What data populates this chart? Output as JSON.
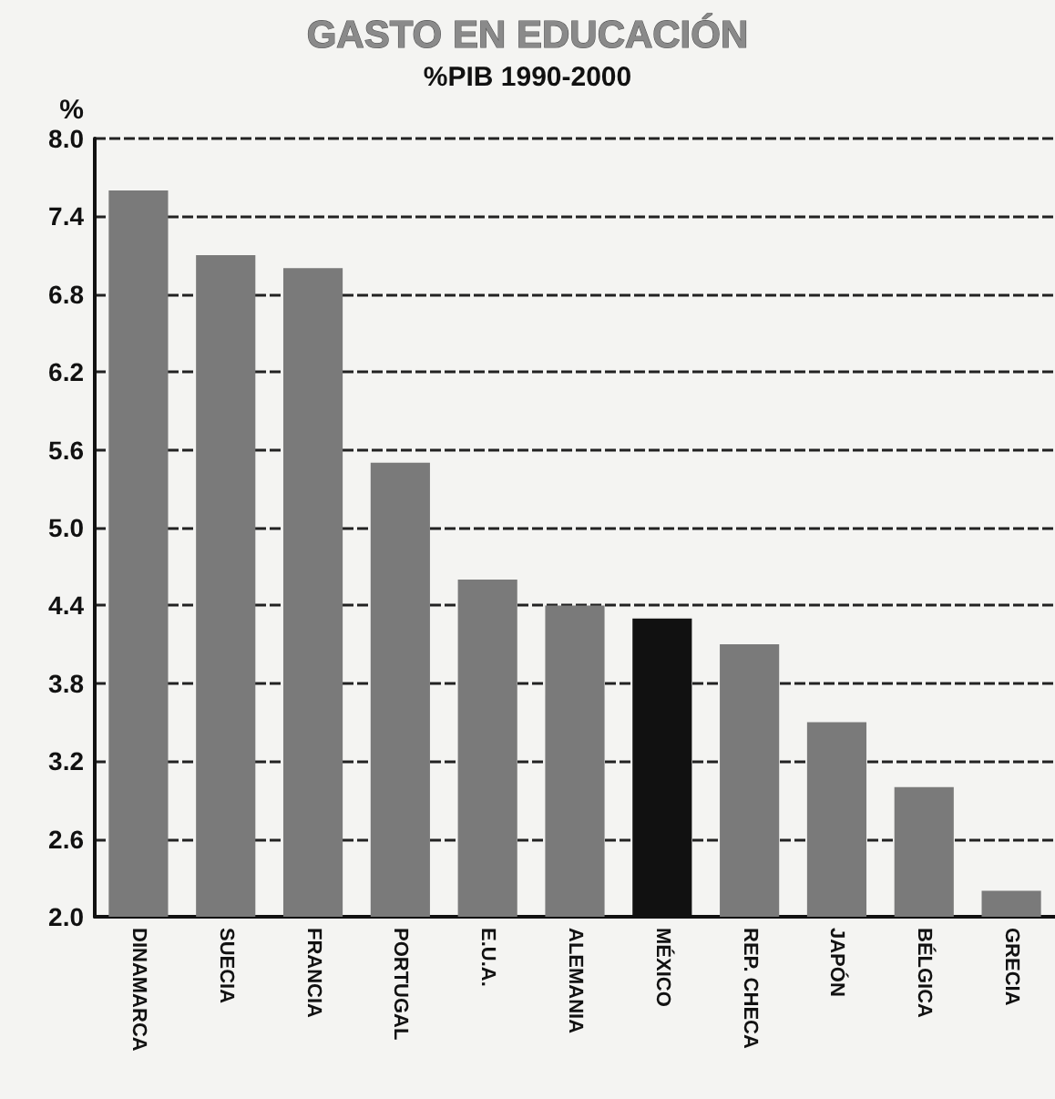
{
  "chart_data": {
    "type": "bar",
    "title": "GASTO EN EDUCACIÓN",
    "subtitle": "%PIB 1990-2000",
    "ylabel": "%",
    "categories": [
      "DINAMARCA",
      "SUECIA",
      "FRANCIA",
      "PORTUGAL",
      "E.U.A.",
      "ALEMANIA",
      "MÉXICO",
      "REP. CHECA",
      "JAPÓN",
      "BÉLGICA",
      "GRECIA"
    ],
    "values": [
      7.6,
      7.1,
      7.0,
      5.5,
      4.6,
      4.4,
      4.3,
      4.1,
      3.5,
      3.0,
      2.2
    ],
    "colors": [
      "#7a7a7a",
      "#7a7a7a",
      "#7a7a7a",
      "#7a7a7a",
      "#7a7a7a",
      "#7a7a7a",
      "#111111",
      "#7a7a7a",
      "#7a7a7a",
      "#7a7a7a",
      "#7a7a7a"
    ],
    "ylim": [
      2.0,
      8.0
    ],
    "yticks": [
      {
        "value": 2.0,
        "label": "2.0"
      },
      {
        "value": 2.6,
        "label": "2.6"
      },
      {
        "value": 3.2,
        "label": "3.2"
      },
      {
        "value": 3.8,
        "label": "3.8"
      },
      {
        "value": 4.4,
        "label": "4.4"
      },
      {
        "value": 5.0,
        "label": "5.0"
      },
      {
        "value": 5.6,
        "label": "5.6"
      },
      {
        "value": 6.2,
        "label": "6.2"
      },
      {
        "value": 6.8,
        "label": "6.8"
      },
      {
        "value": 7.4,
        "label": "7.4"
      },
      {
        "value": 8.0,
        "label": "8.0"
      }
    ],
    "grid": "y"
  }
}
